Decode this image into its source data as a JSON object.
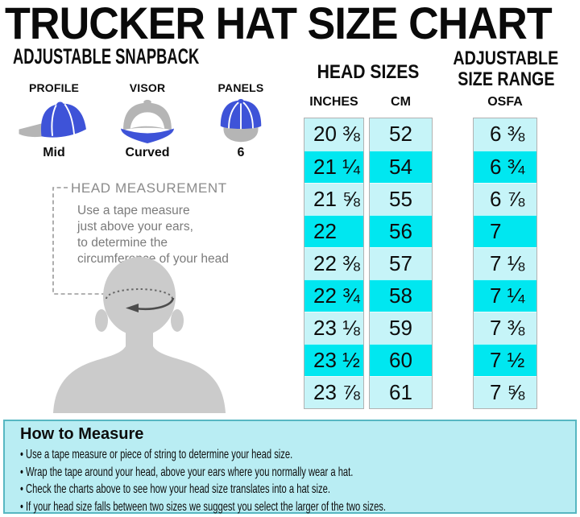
{
  "title": "TRUCKER HAT SIZE CHART",
  "subtitle": "ADJUSTABLE SNAPBACK",
  "features": [
    {
      "label": "PROFILE",
      "value": "Mid",
      "icon": "profile-hat-icon"
    },
    {
      "label": "VISOR",
      "value": "Curved",
      "icon": "visor-hat-icon"
    },
    {
      "label": "PANELS",
      "value": "6",
      "icon": "panels-hat-icon"
    }
  ],
  "measurement": {
    "heading": "HEAD MEASUREMENT",
    "lines": [
      "Use a tape measure",
      "just above your ears,",
      "to determine the",
      "circumference of your head"
    ]
  },
  "head_sizes_heading": "HEAD SIZES",
  "size_range_heading": [
    "ADJUSTABLE",
    "SIZE RANGE"
  ],
  "chart_data": {
    "type": "table",
    "title": "TRUCKER HAT SIZE CHART",
    "column_groups": {
      "HEAD SIZES": [
        "INCHES",
        "CM"
      ],
      "ADJUSTABLE SIZE RANGE": [
        "OSFA"
      ]
    },
    "columns": [
      "INCHES",
      "CM",
      "OSFA"
    ],
    "rows": [
      [
        "20 ⅜",
        "52",
        "6 ⅜"
      ],
      [
        "21 ¼",
        "54",
        "6 ¾"
      ],
      [
        "21 ⅝",
        "55",
        "6 ⅞"
      ],
      [
        "22",
        "56",
        "7"
      ],
      [
        "22 ⅜",
        "57",
        "7 ⅛"
      ],
      [
        "22 ¾",
        "58",
        "7 ¼"
      ],
      [
        "23 ⅛",
        "59",
        "7 ⅜"
      ],
      [
        "23 ½",
        "60",
        "7 ½"
      ],
      [
        "23 ⅞",
        "61",
        "7 ⅝"
      ]
    ],
    "row_striping": "alternating light cyan / bright cyan, starting light"
  },
  "how_to_measure": {
    "heading": "How to Measure",
    "bullet_char": "•",
    "bullets": [
      "Use a tape measure or piece of string to determine your head size.",
      "Wrap the tape around your head, above your ears where you normally wear a hat.",
      "Check the charts above to see how your head size translates into a hat size.",
      "If your head size falls between two sizes we suggest you select the larger of the two sizes."
    ]
  },
  "colors": {
    "row_light": "#c6f4f8",
    "row_bright": "#00e7f0",
    "footer_bg": "#b9edf3",
    "footer_border": "#57b7c2",
    "hat_blue": "#3e53d8",
    "hat_gray": "#b5b5b5",
    "silhouette_gray": "#cbcbcb"
  }
}
